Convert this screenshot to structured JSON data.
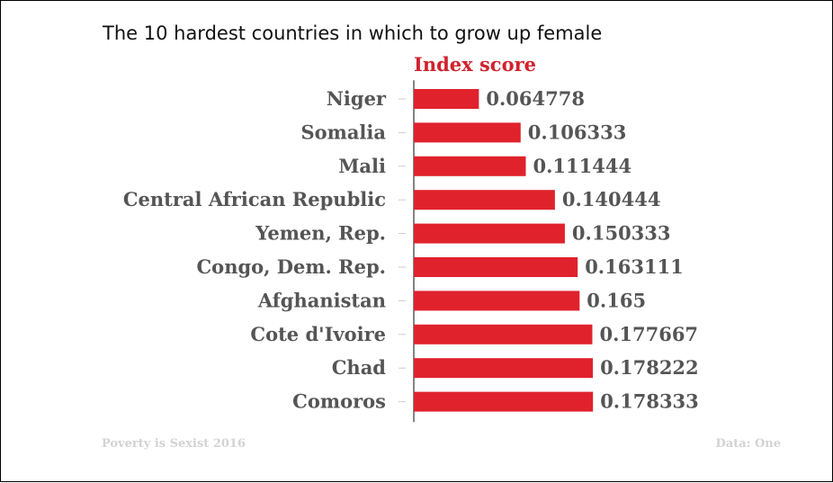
{
  "title": "The 10 hardest countries in which to grow up female",
  "footer": {
    "source_left": "Poverty is Sexist 2016",
    "source_right": "Data: One"
  },
  "colors": {
    "bar": "#e0222d",
    "header": "#d0222d",
    "label": "#555555",
    "axis": "#333333",
    "tick": "#cccccc",
    "footer": "#d3d3d3"
  },
  "chart_data": {
    "type": "bar",
    "orientation": "horizontal",
    "title": "The 10 hardest countries in which to grow up female",
    "series_header": "Index score",
    "categories": [
      "Niger",
      "Somalia",
      "Mali",
      "Central African Republic",
      "Yemen, Rep.",
      "Congo, Dem. Rep.",
      "Afghanistan",
      "Cote d'Ivoire",
      "Chad",
      "Comoros"
    ],
    "values": [
      0.064778,
      0.106333,
      0.111444,
      0.140444,
      0.150333,
      0.163111,
      0.165,
      0.177667,
      0.178222,
      0.178333
    ],
    "value_labels": [
      "0.064778",
      "0.106333",
      "0.111444",
      "0.140444",
      "0.150333",
      "0.163111",
      "0.165",
      "0.177667",
      "0.178222",
      "0.178333"
    ],
    "xlim": [
      0,
      0.41
    ],
    "grid": false,
    "legend": "none"
  }
}
